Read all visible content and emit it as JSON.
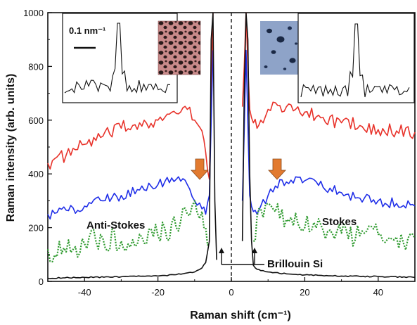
{
  "chart_data": {
    "type": "line",
    "xlabel": "Raman shift (cm⁻¹)",
    "ylabel": "Raman intensity (arb. units)",
    "xlim": [
      -50,
      50
    ],
    "ylim": [
      0,
      1000
    ],
    "x_ticks": [
      -40,
      -20,
      0,
      20,
      40
    ],
    "y_ticks": [
      0,
      200,
      400,
      600,
      800,
      1000
    ],
    "x_tick_labels": [
      "-40",
      "-20",
      "0",
      "20",
      "40"
    ],
    "y_tick_labels": [
      "0",
      "200",
      "400",
      "600",
      "800",
      "1000"
    ],
    "grid": false,
    "zero_line": "dashed vertical at x = 0",
    "series": [
      {
        "color": "#e8322a",
        "style": "solid",
        "anti_stokes": {
          "x": [
            -50,
            -45,
            -40,
            -35,
            -30,
            -25,
            -20,
            -15,
            -12,
            -10,
            -8,
            -7,
            -6,
            -5
          ],
          "y": [
            440,
            470,
            510,
            540,
            570,
            590,
            600,
            625,
            640,
            600,
            560,
            480,
            380,
            1000
          ]
        },
        "stokes": {
          "x": [
            3,
            4,
            5,
            6,
            7,
            8,
            10,
            12,
            15,
            20,
            25,
            30,
            35,
            40,
            45,
            50
          ],
          "y": [
            650,
            1000,
            640,
            590,
            570,
            600,
            640,
            665,
            650,
            630,
            610,
            590,
            580,
            565,
            560,
            555
          ]
        }
      },
      {
        "color": "#1f2ee8",
        "style": "solid",
        "anti_stokes": {
          "x": [
            -50,
            -45,
            -40,
            -35,
            -30,
            -25,
            -20,
            -15,
            -12,
            -10,
            -8,
            -7,
            -6,
            -5
          ],
          "y": [
            250,
            265,
            280,
            300,
            320,
            340,
            360,
            380,
            360,
            300,
            270,
            250,
            320,
            860
          ]
        },
        "stokes": {
          "x": [
            3,
            4,
            5,
            6,
            7,
            8,
            10,
            12,
            15,
            20,
            25,
            30,
            35,
            40,
            45,
            50
          ],
          "y": [
            300,
            860,
            320,
            260,
            250,
            280,
            320,
            355,
            370,
            375,
            350,
            330,
            310,
            300,
            290,
            280
          ]
        }
      },
      {
        "color": "#2e9a2e",
        "style": "dotted",
        "anti_stokes": {
          "x": [
            -50,
            -45,
            -40,
            -35,
            -30,
            -25,
            -20,
            -15,
            -12,
            -10,
            -8,
            -7,
            -6
          ],
          "y": [
            120,
            110,
            140,
            160,
            150,
            175,
            170,
            200,
            250,
            300,
            260,
            200,
            140
          ]
        },
        "stokes": {
          "x": [
            6,
            7,
            8,
            10,
            12,
            15,
            20,
            25,
            30,
            35,
            40,
            45,
            50
          ],
          "y": [
            150,
            240,
            270,
            290,
            260,
            230,
            200,
            190,
            180,
            170,
            175,
            165,
            160
          ]
        }
      },
      {
        "color": "#111111",
        "style": "solid",
        "anti_stokes": {
          "x": [
            -50,
            -40,
            -30,
            -20,
            -15,
            -10,
            -8,
            -7,
            -6,
            -5.5,
            -5,
            -4.5,
            -4
          ],
          "y": [
            12,
            15,
            17,
            20,
            25,
            35,
            50,
            70,
            150,
            900,
            1000,
            300,
            80
          ]
        },
        "stokes": {
          "x": [
            3,
            3.5,
            4,
            4.5,
            5,
            5.5,
            6,
            7,
            8,
            10,
            15,
            20,
            30,
            40,
            50
          ],
          "y": [
            150,
            700,
            1000,
            900,
            400,
            150,
            60,
            45,
            40,
            35,
            28,
            24,
            20,
            18,
            15
          ]
        }
      }
    ],
    "annotations": {
      "anti_stokes": "Anti-Stokes",
      "stokes": "Stokes",
      "brillouin": "Brillouin Si",
      "scale_bar": "0.1 nm⁻¹"
    }
  }
}
